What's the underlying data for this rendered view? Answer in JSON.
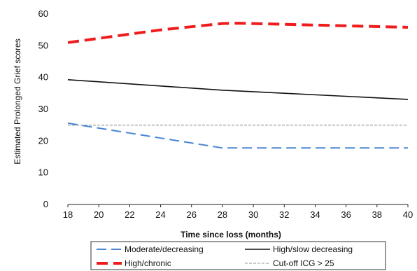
{
  "chart_data": {
    "type": "line",
    "title": "",
    "xlabel": "Time since loss (months)",
    "ylabel": "Estimated Prolonged Grief scores",
    "xlim": [
      18,
      40
    ],
    "ylim": [
      0,
      60
    ],
    "xticks": [
      "18",
      "20",
      "22",
      "24",
      "26",
      "28",
      "30",
      "32",
      "34",
      "36",
      "38",
      "40"
    ],
    "yticks": [
      "0",
      "10",
      "20",
      "30",
      "40",
      "50",
      "60"
    ],
    "grid": false,
    "legend_position": "bottom",
    "series": [
      {
        "name": "Moderate/decreasing",
        "color": "#4a86d4",
        "style": "dashed",
        "x": [
          18,
          28,
          40
        ],
        "y": [
          25.6,
          17.8,
          17.8
        ]
      },
      {
        "name": "High/slow decreasing",
        "color": "#111111",
        "style": "solid",
        "x": [
          18,
          28,
          40
        ],
        "y": [
          39.3,
          36.0,
          33.1
        ]
      },
      {
        "name": "High/chronic",
        "color": "#ee1c1c",
        "style": "bold-dashed",
        "x": [
          18,
          24,
          28,
          29,
          40
        ],
        "y": [
          51.0,
          55.0,
          57.0,
          57.1,
          55.8
        ]
      },
      {
        "name": "Cut-off ICG > 25",
        "color": "#a6a6a6",
        "style": "dotted",
        "x": [
          18,
          40
        ],
        "y": [
          25,
          25
        ]
      }
    ]
  }
}
